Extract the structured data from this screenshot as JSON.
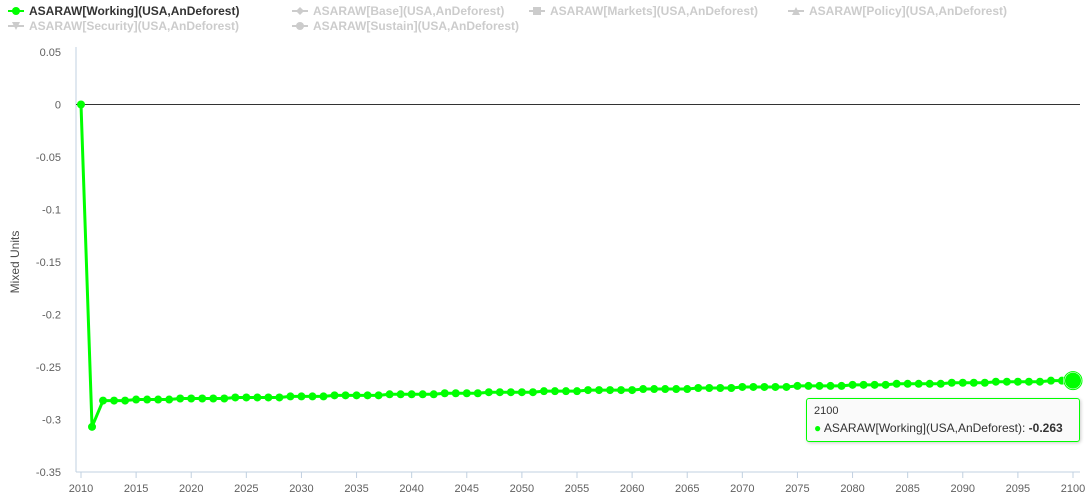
{
  "legend": [
    {
      "label": "ASARAW[Working](USA,AnDeforest)",
      "active": true,
      "marker": "circle"
    },
    {
      "label": "ASARAW[Base](USA,AnDeforest)",
      "active": false,
      "marker": "diamond"
    },
    {
      "label": "ASARAW[Markets](USA,AnDeforest)",
      "active": false,
      "marker": "square"
    },
    {
      "label": "ASARAW[Policy](USA,AnDeforest)",
      "active": false,
      "marker": "triangle"
    },
    {
      "label": "ASARAW[Security](USA,AnDeforest)",
      "active": false,
      "marker": "triangle-down"
    },
    {
      "label": "ASARAW[Sustain](USA,AnDeforest)",
      "active": false,
      "marker": "circle"
    }
  ],
  "colors": {
    "series": "#00ff00",
    "inactive": "#cccccc",
    "axis": "#c0d0e0",
    "zero_line": "#333333"
  },
  "tooltip": {
    "x_label": "2100",
    "series": "ASARAW[Working](USA,AnDeforest):",
    "value": "-0.263"
  },
  "chart_data": {
    "type": "line",
    "ylabel": "Mixed Units",
    "xlabel": "",
    "xlim": [
      2010,
      2100
    ],
    "ylim": [
      -0.35,
      0.05
    ],
    "x_ticks": [
      2010,
      2015,
      2020,
      2025,
      2030,
      2035,
      2040,
      2045,
      2050,
      2055,
      2060,
      2065,
      2070,
      2075,
      2080,
      2085,
      2090,
      2095,
      2100
    ],
    "y_ticks": [
      "0.05",
      "0",
      "-0.05",
      "-0.1",
      "-0.15",
      "-0.2",
      "-0.25",
      "-0.3",
      "-0.35"
    ],
    "grid": "zero line only",
    "legend_position": "top",
    "series": [
      {
        "name": "ASARAW[Working](USA,AnDeforest)",
        "x_start": 2010,
        "x_step": 1,
        "values": [
          0,
          -0.307,
          -0.282,
          -0.282,
          -0.282,
          -0.281,
          -0.281,
          -0.281,
          -0.281,
          -0.28,
          -0.28,
          -0.28,
          -0.28,
          -0.28,
          -0.279,
          -0.279,
          -0.279,
          -0.279,
          -0.279,
          -0.278,
          -0.278,
          -0.278,
          -0.278,
          -0.277,
          -0.277,
          -0.277,
          -0.277,
          -0.277,
          -0.276,
          -0.276,
          -0.276,
          -0.276,
          -0.276,
          -0.275,
          -0.275,
          -0.275,
          -0.275,
          -0.274,
          -0.274,
          -0.274,
          -0.274,
          -0.274,
          -0.273,
          -0.273,
          -0.273,
          -0.273,
          -0.272,
          -0.272,
          -0.272,
          -0.272,
          -0.272,
          -0.271,
          -0.271,
          -0.271,
          -0.271,
          -0.271,
          -0.27,
          -0.27,
          -0.27,
          -0.27,
          -0.269,
          -0.269,
          -0.269,
          -0.269,
          -0.269,
          -0.268,
          -0.268,
          -0.268,
          -0.268,
          -0.268,
          -0.267,
          -0.267,
          -0.267,
          -0.267,
          -0.266,
          -0.266,
          -0.266,
          -0.266,
          -0.266,
          -0.265,
          -0.265,
          -0.265,
          -0.265,
          -0.264,
          -0.264,
          -0.264,
          -0.264,
          -0.264,
          -0.263,
          -0.263,
          -0.263
        ]
      }
    ],
    "highlighted_point": {
      "x": 2100,
      "y": -0.263
    }
  }
}
